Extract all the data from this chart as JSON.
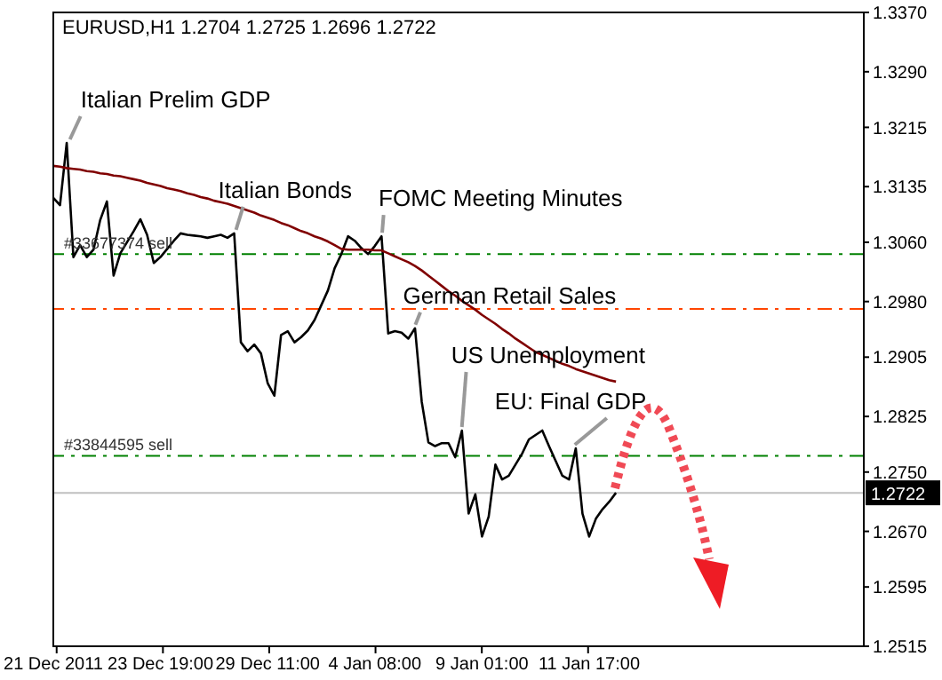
{
  "chart_data": {
    "type": "line",
    "title": "EURUSD,H1 1.2704 1.2725 1.2696 1.2722",
    "categories": [
      "21 Dec 2011",
      null,
      null,
      null,
      null,
      null,
      null,
      null,
      null,
      null,
      null,
      null,
      null,
      null,
      null,
      null,
      "23 Dec 19:00",
      null,
      null,
      null,
      null,
      null,
      null,
      null,
      null,
      null,
      null,
      null,
      null,
      null,
      null,
      null,
      "29 Dec 11:00",
      null,
      null,
      null,
      null,
      null,
      null,
      null,
      null,
      null,
      null,
      null,
      null,
      null,
      null,
      null,
      "4 Jan 08:00",
      null,
      null,
      null,
      null,
      null,
      null,
      null,
      null,
      null,
      null,
      null,
      null,
      null,
      null,
      null,
      "9 Jan 01:00",
      null,
      null,
      null,
      null,
      null,
      null,
      null,
      null,
      null,
      null,
      null,
      null,
      null,
      null,
      null,
      "11 Jan 17:00",
      null,
      null,
      null,
      null,
      null,
      null,
      null,
      null,
      null,
      null,
      null,
      null,
      null,
      null,
      null,
      null,
      null,
      null,
      null,
      null,
      null,
      null,
      null,
      null,
      null,
      null,
      null,
      null,
      null,
      null,
      null,
      null,
      null,
      null,
      null,
      null,
      null,
      null,
      null,
      null,
      null
    ],
    "ylim": [
      1.2515,
      1.337
    ],
    "yticks": [
      {
        "value": 1.2515,
        "label": "1.2515"
      },
      {
        "value": 1.2595,
        "label": "1.2595"
      },
      {
        "value": 1.267,
        "label": "1.2670"
      },
      {
        "value": 1.275,
        "label": "1.2750"
      },
      {
        "value": 1.2825,
        "label": "1.2825"
      },
      {
        "value": 1.2905,
        "label": "1.2905"
      },
      {
        "value": 1.298,
        "label": "1.2980"
      },
      {
        "value": 1.306,
        "label": "1.3060"
      },
      {
        "value": 1.3135,
        "label": "1.3135"
      },
      {
        "value": 1.3215,
        "label": "1.3215"
      },
      {
        "value": 1.329,
        "label": "1.3290"
      },
      {
        "value": 1.337,
        "label": "1.3370"
      }
    ],
    "marker": "none",
    "series": [
      {
        "color": "#000000",
        "values": [
          1.312,
          1.311,
          1.3194,
          1.304,
          1.3056,
          1.304,
          1.305,
          1.309,
          1.3115,
          1.3015,
          1.3045,
          1.306,
          1.3075,
          1.3091,
          1.307,
          1.3032,
          1.304,
          1.3051,
          1.3062,
          1.3072,
          1.307,
          1.3069,
          1.3068,
          1.3066,
          1.3068,
          1.307,
          1.3066,
          1.3072,
          1.2925,
          1.2913,
          1.2922,
          1.291,
          1.287,
          1.2853,
          1.2935,
          1.294,
          1.2925,
          1.2932,
          1.2941,
          1.2955,
          1.2975,
          1.2995,
          1.3025,
          1.3044,
          1.3068,
          1.3062,
          1.3052,
          1.3044,
          1.3055,
          1.3068,
          1.2937,
          1.294,
          1.2938,
          1.293,
          1.2944,
          1.2845,
          1.279,
          1.2785,
          1.2789,
          1.2789,
          1.277,
          1.2806,
          1.2694,
          1.272,
          1.2663,
          1.269,
          1.276,
          1.274,
          1.2745,
          1.276,
          1.2775,
          1.2794,
          1.28,
          1.2806,
          1.2785,
          1.2765,
          1.2745,
          1.274,
          1.2782,
          1.2694,
          1.2663,
          1.2687,
          1.27,
          1.271,
          1.2722,
          null,
          null,
          null,
          null,
          null,
          null,
          null,
          null,
          null,
          null,
          null,
          null,
          null,
          null,
          null,
          null,
          null,
          null,
          null,
          null,
          null,
          null,
          null,
          null,
          null,
          null,
          null,
          null,
          null,
          null,
          null,
          null,
          null,
          null,
          null,
          null,
          null
        ]
      },
      {
        "color": "#800000",
        "values": [
          1.3163,
          1.3162,
          1.316,
          1.3159,
          1.3158,
          1.3156,
          1.3155,
          1.3153,
          1.3152,
          1.315,
          1.3149,
          1.3147,
          1.3145,
          1.3143,
          1.314,
          1.3138,
          1.3136,
          1.3133,
          1.3131,
          1.3129,
          1.3126,
          1.3124,
          1.3121,
          1.3119,
          1.3116,
          1.3114,
          1.3112,
          1.3109,
          1.3106,
          1.3103,
          1.31,
          1.3096,
          1.3093,
          1.309,
          1.3086,
          1.3083,
          1.3079,
          1.3075,
          1.3072,
          1.3068,
          1.3065,
          1.3061,
          1.3056,
          1.3051,
          1.305,
          1.305,
          1.305,
          1.305,
          1.3049,
          1.3049,
          1.3045,
          1.3041,
          1.3037,
          1.3033,
          1.3028,
          1.3022,
          1.3015,
          1.3008,
          1.3001,
          1.2994,
          1.2988,
          1.2981,
          1.2975,
          1.2969,
          1.2962,
          1.2956,
          1.295,
          1.2943,
          1.2937,
          1.293,
          1.2924,
          1.2918,
          1.2912,
          1.2908,
          1.2904,
          1.29,
          1.2896,
          1.2893,
          1.2889,
          1.2886,
          1.2883,
          1.288,
          1.2877,
          1.2874,
          1.2872,
          null,
          null,
          null,
          null,
          null,
          null,
          null,
          null,
          null,
          null,
          null,
          null,
          null,
          null,
          null,
          null,
          null,
          null,
          null,
          null,
          null,
          null,
          null,
          null,
          null,
          null,
          null,
          null,
          null,
          null,
          null,
          null,
          null,
          null,
          null,
          null,
          null
        ]
      }
    ],
    "ref_lines": [
      {
        "axis": "y",
        "value": 1.3044,
        "label": "#33677374 sell",
        "color": "#008000",
        "line_style": "dashed"
      },
      {
        "axis": "y",
        "value": 1.297,
        "label": null,
        "color": "#ff4500",
        "line_style": "dashed"
      },
      {
        "axis": "y",
        "value": 1.2772,
        "label": "#33844595 sell",
        "color": "#008000",
        "line_style": "dashed"
      },
      {
        "axis": "y",
        "value": 1.2722,
        "label": "1.2722",
        "color": "#c0c0c0",
        "line_style": "solid"
      }
    ],
    "annotations": [
      "Italian Prelim GDP",
      {
        "text": "Italian Bonds",
        "y": 1.3072
      },
      "FOMC Meeting Minutes",
      {
        "text": "German Retail Sales",
        "y": 1.2944
      },
      {
        "text": "US Unemployment",
        "y": 1.2806
      },
      {
        "text": "EU: Final GDP",
        "y": 1.2782
      }
    ]
  }
}
